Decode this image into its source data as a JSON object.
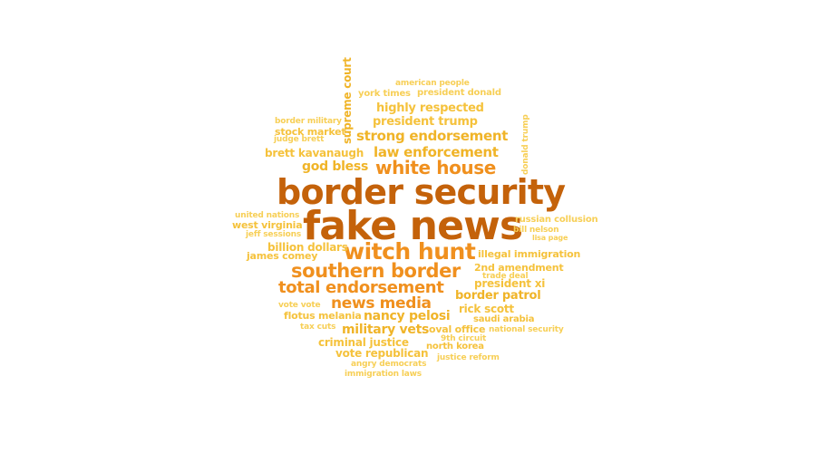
{
  "palette": {
    "c1": "#c4620a",
    "c2": "#f0901e",
    "c3": "#f0b428",
    "c4": "#f5c23c",
    "c5": "#f7cf56"
  },
  "words": {
    "fake_news": "fake news",
    "border_security": "border security",
    "witch_hunt": "witch hunt",
    "white_house": "white house",
    "southern_border": "southern border",
    "total_endorsement": "total endorsement",
    "news_media": "news media",
    "strong_endorsement": "strong endorsement",
    "law_enforcement": "law enforcement",
    "nancy_pelosi": "nancy pelosi",
    "military_vets": "military vets",
    "border_patrol": "border patrol",
    "god_bless": "god bless",
    "highly_respected": "highly respected",
    "president_trump": "president trump",
    "rick_scott": "rick scott",
    "brett_kavanaugh": "brett kavanaugh",
    "billion_dollars": "billion dollars",
    "criminal_justice": "criminal justice",
    "vote_republican": "vote republican",
    "president_xi": "president xi",
    "supreme_court": "supreme court",
    "illegal_immigration": "illegal immigration",
    "2nd_amendment": "2nd amendment",
    "james_comey": "james comey",
    "west_virginia": "west virginia",
    "flotus_melania": "flotus melania",
    "oval_office": "oval office",
    "north_korea": "north korea",
    "saudi_arabia": "saudi arabia",
    "stock_market": "stock market",
    "russian_collusion": "russian collusion",
    "president_donald": "president donald",
    "york_times": "york times",
    "american_people": "american people",
    "united_nations": "united nations",
    "jeff_sessions": "jeff sessions",
    "bill_nelson": "bill nelson",
    "lisa_page": "lisa page",
    "border_military": "border military",
    "judge_brett": "judge brett",
    "donald_trump": "donald trump",
    "trade_deal": "trade deal",
    "vote_vote": "vote vote",
    "tax_cuts": "tax cuts",
    "9th_circuit": "9th circuit",
    "national_security": "national security",
    "justice_reform": "justice reform",
    "angry_democrats": "angry democrats",
    "immigration_laws": "immigration laws"
  }
}
